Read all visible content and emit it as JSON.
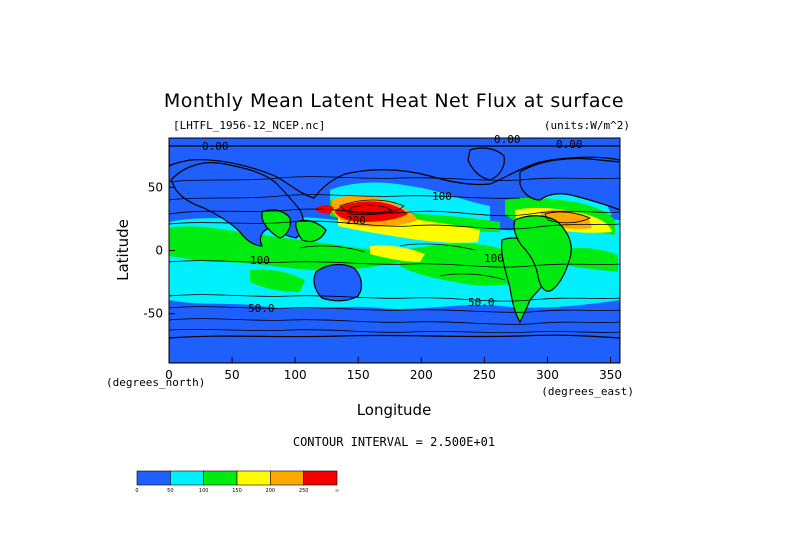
{
  "chart_data": {
    "type": "heatmap",
    "title": "Monthly Mean Latent Heat Net Flux at surface",
    "file_label": "[LHTFL_1956-12_NCEP.nc]",
    "units_label": "(units:W/m^2)",
    "xlabel": "Longitude",
    "ylabel": "Latitude",
    "x_unit_label": "(degrees_east)",
    "y_unit_label": "(degrees_north)",
    "xlim": [
      0,
      357.5
    ],
    "ylim": [
      -89,
      89
    ],
    "x_ticks": [
      0,
      50,
      100,
      150,
      200,
      250,
      300,
      350
    ],
    "y_ticks": [
      -50,
      0,
      50
    ],
    "contour_interval_label": "CONTOUR INTERVAL = 2.500E+01",
    "contour_labels": [
      "0.00",
      "0.00",
      "0.00",
      "100",
      "200",
      "100",
      "100",
      "50.0",
      "50.0"
    ],
    "colorbar": {
      "bins": [
        {
          "min": 0,
          "max": 50,
          "color": "#1f5ffb"
        },
        {
          "min": 50,
          "max": 100,
          "color": "#00f0fe"
        },
        {
          "min": 100,
          "max": 150,
          "color": "#00ec10"
        },
        {
          "min": 150,
          "max": 200,
          "color": "#fdfd00"
        },
        {
          "min": 200,
          "max": 250,
          "color": "#ffa800"
        },
        {
          "min": 250,
          "max": 300,
          "color": "#f40000"
        }
      ],
      "tick_labels": [
        "0",
        "50",
        "100",
        "150",
        "200",
        "250",
        "∞"
      ]
    }
  }
}
